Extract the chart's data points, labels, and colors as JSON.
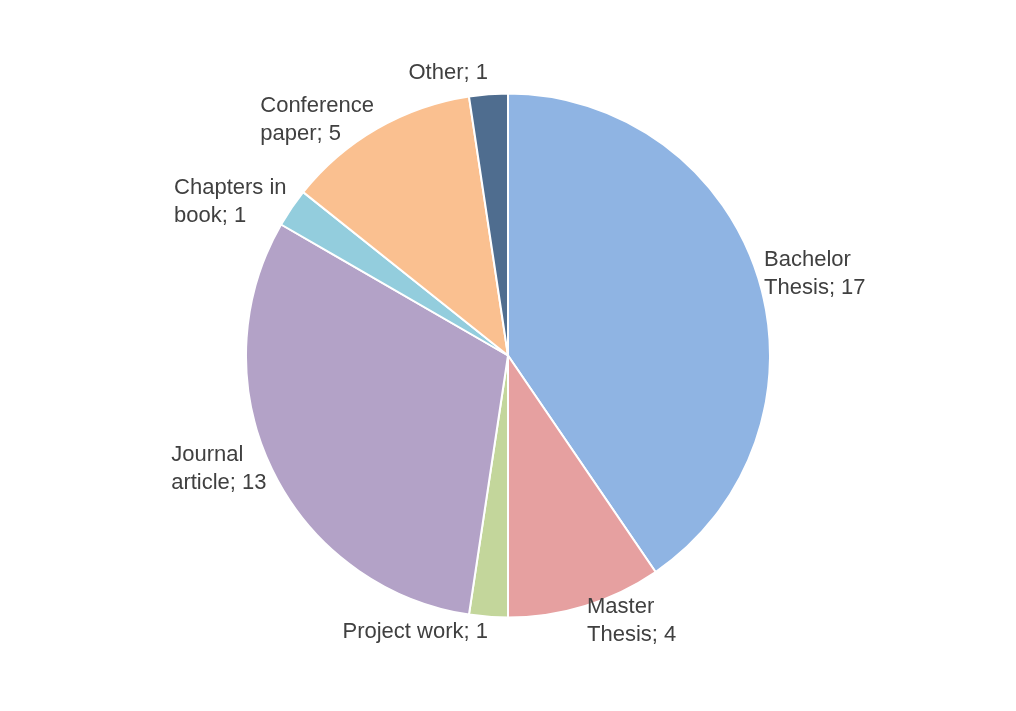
{
  "chart_data": {
    "type": "pie",
    "categories": [
      "Bachelor Thesis",
      "Master Thesis",
      "Project work",
      "Journal article",
      "Chapters in book",
      "Conference paper",
      "Other"
    ],
    "values": [
      17,
      4,
      1,
      13,
      1,
      5,
      1
    ],
    "colors": [
      "#8fb4e3",
      "#e6a0a0",
      "#c3d69b",
      "#b3a2c7",
      "#93cddd",
      "#fac090",
      "#4f6d8f"
    ],
    "value_labels": [
      "; 17",
      "; 4",
      "; 1",
      "; 13",
      "; 1",
      "; 5",
      "; 1"
    ]
  }
}
